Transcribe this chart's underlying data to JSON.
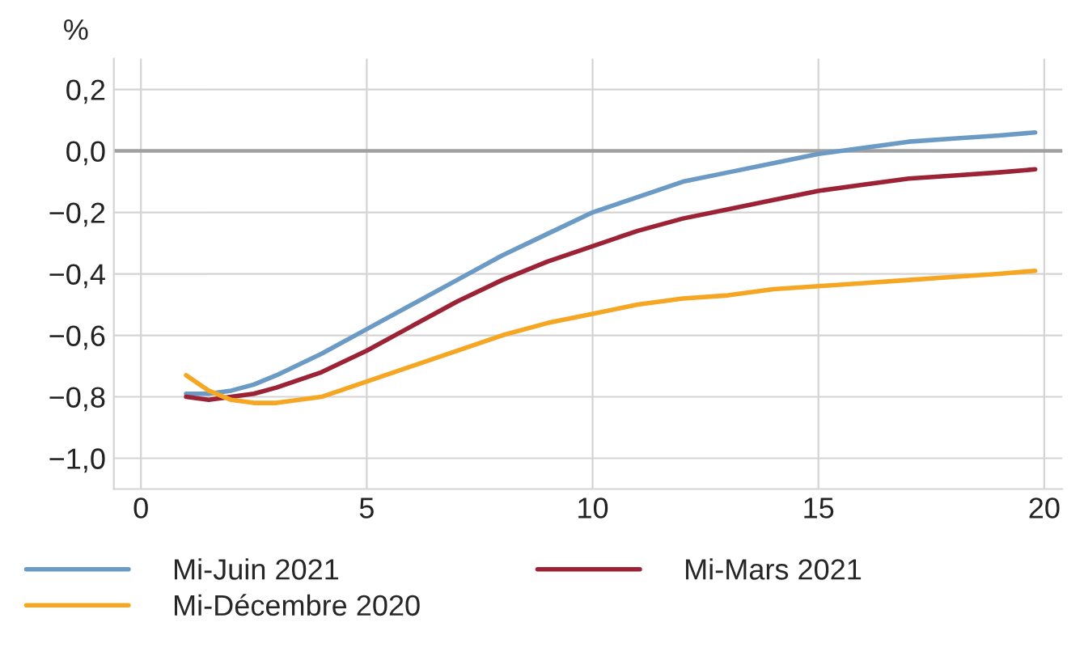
{
  "chart_data": {
    "type": "line",
    "ylabel": "%",
    "x": [
      1,
      1.5,
      2,
      2.5,
      3,
      4,
      5,
      6,
      7,
      8,
      9,
      10,
      11,
      12,
      13,
      14,
      15,
      16,
      17,
      18,
      19,
      19.8
    ],
    "series": [
      {
        "name": "Mi-Juin 2021",
        "color": "#6b9ac4",
        "values": [
          -0.79,
          -0.79,
          -0.78,
          -0.76,
          -0.73,
          -0.66,
          -0.58,
          -0.5,
          -0.42,
          -0.34,
          -0.27,
          -0.2,
          -0.15,
          -0.1,
          -0.07,
          -0.04,
          -0.01,
          0.01,
          0.03,
          0.04,
          0.05,
          0.06
        ]
      },
      {
        "name": "Mi-Mars 2021",
        "color": "#9b2335",
        "values": [
          -0.8,
          -0.81,
          -0.8,
          -0.79,
          -0.77,
          -0.72,
          -0.65,
          -0.57,
          -0.49,
          -0.42,
          -0.36,
          -0.31,
          -0.26,
          -0.22,
          -0.19,
          -0.16,
          -0.13,
          -0.11,
          -0.09,
          -0.08,
          -0.07,
          -0.06
        ]
      },
      {
        "name": "Mi-Décembre 2020",
        "color": "#f5a623",
        "values": [
          -0.73,
          -0.78,
          -0.81,
          -0.82,
          -0.82,
          -0.8,
          -0.75,
          -0.7,
          -0.65,
          -0.6,
          -0.56,
          -0.53,
          -0.5,
          -0.48,
          -0.47,
          -0.45,
          -0.44,
          -0.43,
          -0.42,
          -0.41,
          -0.4,
          -0.39
        ]
      }
    ],
    "xlim": [
      -0.6,
      20.4
    ],
    "xticks": [
      0,
      5,
      10,
      15,
      20
    ],
    "ylim": [
      -1.1,
      0.3
    ],
    "yticks": [
      {
        "value": -1.0,
        "label": "−1,0"
      },
      {
        "value": -0.8,
        "label": "−0,8"
      },
      {
        "value": -0.6,
        "label": "−0,6"
      },
      {
        "value": -0.4,
        "label": "−0,4"
      },
      {
        "value": -0.2,
        "label": "−0,2"
      },
      {
        "value": 0.0,
        "label": "0,0"
      },
      {
        "value": 0.2,
        "label": "0,2"
      }
    ],
    "ref_lines": [
      {
        "axis": "y",
        "value": 0,
        "color": "#a0a0a0"
      }
    ],
    "grid": true,
    "legend": "bottom",
    "line_style": "solid",
    "marker": "none"
  }
}
